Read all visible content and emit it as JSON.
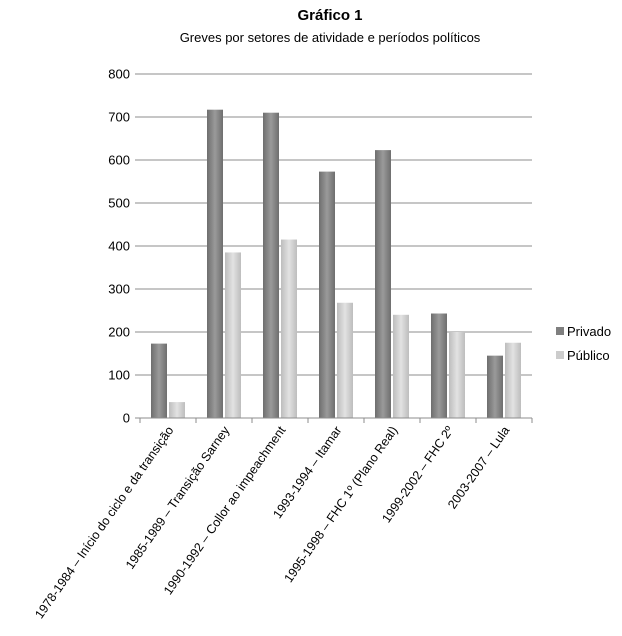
{
  "chart_data": {
    "type": "bar",
    "title": "Gráfico 1",
    "subtitle": "Greves por setores de atividade e períodos políticos",
    "xlabel": "",
    "ylabel": "",
    "ylim": [
      0,
      800
    ],
    "yticks": [
      0,
      100,
      200,
      300,
      400,
      500,
      600,
      700,
      800
    ],
    "grid": true,
    "legend_position": "right",
    "categories": [
      "1978-1984 – Início do ciclo e da transição",
      "1985-1989 – Transição Sarney",
      "1990-1992 – Collor ao impeachment",
      "1993-1994 – Itamar",
      "1995-1998 – FHC 1º (Plano Real)",
      "1999-2002 – FHC 2º",
      "2003-2007 – Lula"
    ],
    "series": [
      {
        "name": "Privado",
        "color": "#7f7f7f",
        "values": [
          173,
          717,
          710,
          573,
          623,
          243,
          145
        ]
      },
      {
        "name": "Público",
        "color": "#cccccc",
        "values": [
          37,
          385,
          415,
          268,
          240,
          200,
          175
        ]
      }
    ]
  }
}
